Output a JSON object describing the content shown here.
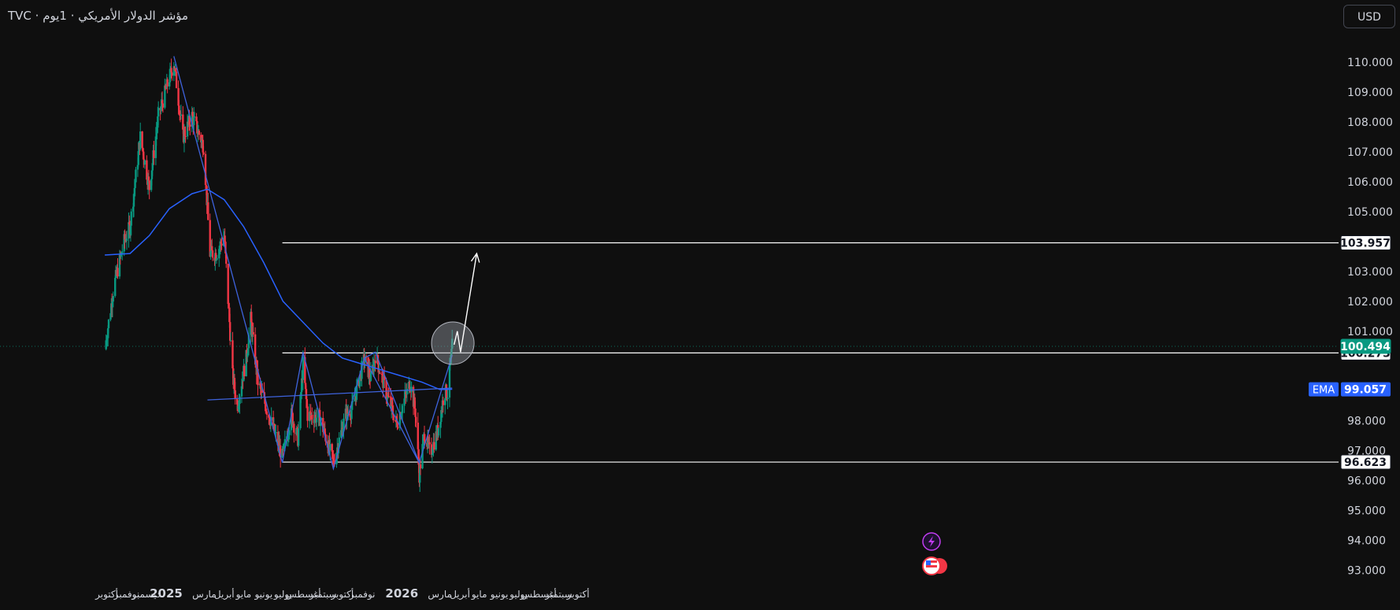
{
  "header": {
    "title": "مؤشر الدولار الأمريكي · 1يوم · TVC",
    "currency_label": "USD"
  },
  "colors": {
    "background": "#0f0f0f",
    "candle_up": "#089981",
    "candle_down": "#f23645",
    "ema_line": "#2962ff",
    "pattern_lines": "#3e63dd",
    "level_lines": "#ffffff",
    "axis_text": "#d1d4dc",
    "last_price_badge": "#089981",
    "ema_badge": "#2962ff"
  },
  "indicator": {
    "name": "EMA",
    "value": "99.057"
  },
  "chart_data": {
    "type": "candlestick",
    "title": "مؤشر الدولار الأمريكي · 1يوم · TVC",
    "ylim": [
      92.6,
      111.2
    ],
    "y_ticks": [
      "110.000",
      "109.000",
      "108.000",
      "107.000",
      "106.000",
      "105.000",
      "103.000",
      "102.000",
      "101.000",
      "98.000",
      "97.000",
      "96.000",
      "95.000",
      "94.000",
      "93.000"
    ],
    "x_tick_labels": [
      "أكتوبر",
      "نوفمبر",
      "ديسمبر",
      "2025",
      "مارس",
      "أبريل",
      "مايو",
      "يونيو",
      "يوليو",
      "أغسطس",
      "سبتمبر",
      "أكتوبر",
      "نوفمبر",
      "2026",
      "مارس",
      "أبريل",
      "مايو",
      "يونيو",
      "يوليو",
      "أغسطس",
      "سبتمبر",
      "أكتوبر"
    ],
    "last_price": 100.494,
    "price_labels": [
      {
        "value": 103.957,
        "text": "103.957"
      },
      {
        "value": 100.273,
        "text": "100.273"
      },
      {
        "value": 96.623,
        "text": "96.623"
      }
    ],
    "path_keypoints": [
      {
        "date": "2024-09-28",
        "value": 100.4
      },
      {
        "date": "2024-10-12",
        "value": 102.5
      },
      {
        "date": "2024-10-28",
        "value": 104.0
      },
      {
        "date": "2024-11-06",
        "value": 104.5
      },
      {
        "date": "2024-11-22",
        "value": 107.5
      },
      {
        "date": "2024-12-06",
        "value": 105.8
      },
      {
        "date": "2024-12-20",
        "value": 108.2
      },
      {
        "date": "2025-01-13",
        "value": 110.0
      },
      {
        "date": "2025-01-27",
        "value": 107.5
      },
      {
        "date": "2025-02-10",
        "value": 108.2
      },
      {
        "date": "2025-02-28",
        "value": 107.2
      },
      {
        "date": "2025-03-10",
        "value": 103.6
      },
      {
        "date": "2025-03-20",
        "value": 103.6
      },
      {
        "date": "2025-04-01",
        "value": 104.2
      },
      {
        "date": "2025-04-14",
        "value": 99.5
      },
      {
        "date": "2025-04-21",
        "value": 98.5
      },
      {
        "date": "2025-05-05",
        "value": 100.1
      },
      {
        "date": "2025-05-12",
        "value": 101.4
      },
      {
        "date": "2025-05-23",
        "value": 99.3
      },
      {
        "date": "2025-06-12",
        "value": 98.0
      },
      {
        "date": "2025-06-30",
        "value": 96.8
      },
      {
        "date": "2025-07-14",
        "value": 98.2
      },
      {
        "date": "2025-07-24",
        "value": 97.4
      },
      {
        "date": "2025-08-01",
        "value": 99.9
      },
      {
        "date": "2025-08-08",
        "value": 98.2
      },
      {
        "date": "2025-08-27",
        "value": 98.1
      },
      {
        "date": "2025-09-17",
        "value": 96.6
      },
      {
        "date": "2025-10-06",
        "value": 98.2
      },
      {
        "date": "2025-10-16",
        "value": 98.4
      },
      {
        "date": "2025-11-04",
        "value": 100.1
      },
      {
        "date": "2025-11-14",
        "value": 99.4
      },
      {
        "date": "2025-11-21",
        "value": 100.2
      },
      {
        "date": "2025-12-10",
        "value": 98.8
      },
      {
        "date": "2025-12-24",
        "value": 97.9
      },
      {
        "date": "2026-01-14",
        "value": 99.3
      },
      {
        "date": "2026-01-22",
        "value": 98.3
      },
      {
        "date": "2026-01-28",
        "value": 96.2
      },
      {
        "date": "2026-02-05",
        "value": 97.6
      },
      {
        "date": "2026-02-14",
        "value": 96.9
      },
      {
        "date": "2026-02-26",
        "value": 97.7
      },
      {
        "date": "2026-03-08",
        "value": 99.0
      },
      {
        "date": "2026-03-13",
        "value": 98.9
      },
      {
        "date": "2026-03-20",
        "value": 100.49
      }
    ],
    "ema_keypoints": [
      {
        "date": "2024-09-28",
        "value": 103.55
      },
      {
        "date": "2024-11-06",
        "value": 103.6
      },
      {
        "date": "2024-12-06",
        "value": 104.2
      },
      {
        "date": "2025-01-06",
        "value": 105.1
      },
      {
        "date": "2025-02-10",
        "value": 105.6
      },
      {
        "date": "2025-03-06",
        "value": 105.75
      },
      {
        "date": "2025-04-01",
        "value": 105.4
      },
      {
        "date": "2025-05-01",
        "value": 104.5
      },
      {
        "date": "2025-06-01",
        "value": 103.3
      },
      {
        "date": "2025-07-01",
        "value": 102.0
      },
      {
        "date": "2025-08-01",
        "value": 101.3
      },
      {
        "date": "2025-09-01",
        "value": 100.6
      },
      {
        "date": "2025-10-01",
        "value": 100.1
      },
      {
        "date": "2025-11-01",
        "value": 99.9
      },
      {
        "date": "2025-12-01",
        "value": 99.7
      },
      {
        "date": "2026-01-01",
        "value": 99.5
      },
      {
        "date": "2026-02-01",
        "value": 99.3
      },
      {
        "date": "2026-03-01",
        "value": 99.05
      },
      {
        "date": "2026-03-20",
        "value": 99.06
      }
    ],
    "zigzag_points": [
      {
        "date": "2025-01-13",
        "value": 110.2
      },
      {
        "date": "2025-06-30",
        "value": 96.6
      },
      {
        "date": "2025-08-01",
        "value": 100.3
      },
      {
        "date": "2025-09-17",
        "value": 96.4
      },
      {
        "date": "2025-11-04",
        "value": 100.1
      },
      {
        "date": "2025-11-21",
        "value": 100.3
      },
      {
        "date": "2026-01-28",
        "value": 96.6
      },
      {
        "date": "2026-03-20",
        "value": 100.2
      }
    ],
    "trend_lines": [
      {
        "from": {
          "date": "2025-11-04",
          "value": 100.1
        },
        "to": {
          "date": "2026-01-28",
          "value": 96.6
        }
      },
      {
        "from": {
          "date": "2025-03-06",
          "value": 98.7
        },
        "to": {
          "date": "2026-03-20",
          "value": 99.1
        }
      }
    ],
    "horizontal_levels": [
      {
        "value": 103.957,
        "from_date": "2025-06-30"
      },
      {
        "value": 100.273,
        "from_date": "2025-06-30"
      },
      {
        "value": 96.623,
        "from_date": "2025-06-30"
      }
    ],
    "projection_path": [
      {
        "date": "2026-03-23",
        "value": 100.55
      },
      {
        "date": "2026-03-28",
        "value": 101.0
      },
      {
        "date": "2026-04-02",
        "value": 100.3
      },
      {
        "date": "2026-04-27",
        "value": 103.6
      }
    ],
    "highlight_circle": {
      "date": "2026-03-21",
      "value": 100.6
    },
    "date_range": [
      "2024-09-28",
      "2026-10-20"
    ]
  }
}
